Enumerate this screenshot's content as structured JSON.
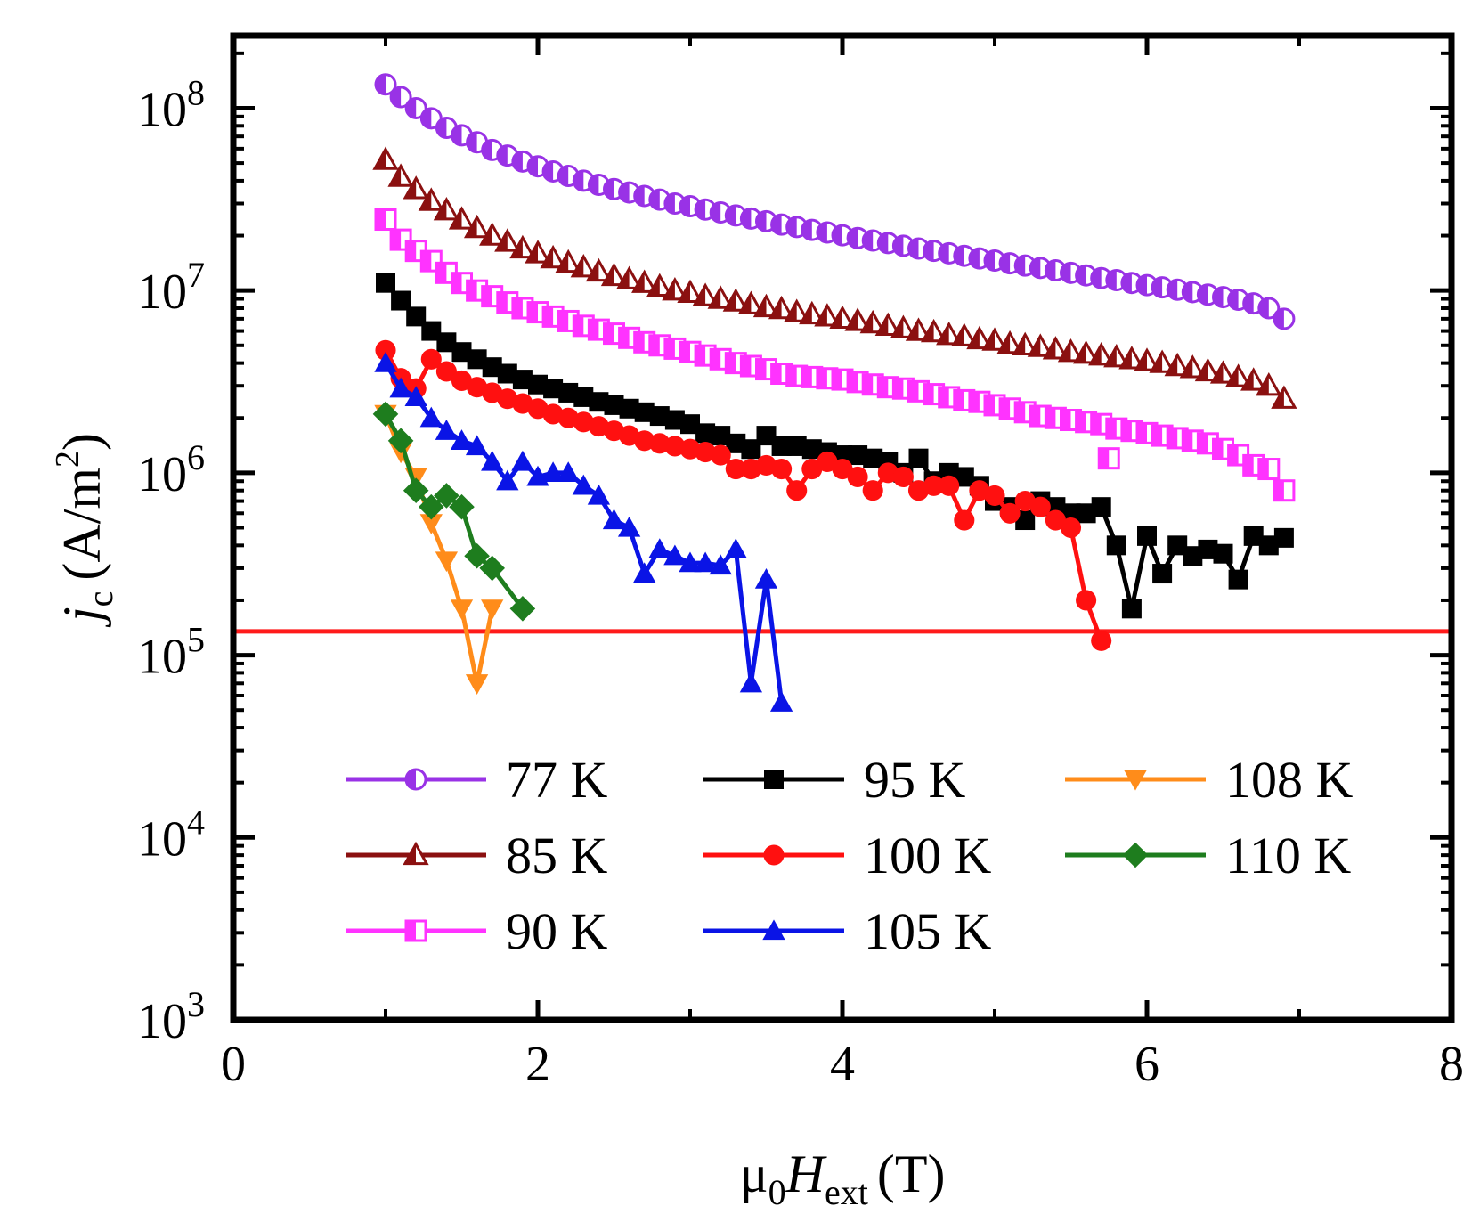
{
  "chart_data": {
    "type": "line",
    "x_axis": {
      "label": "μ0Hext (T)",
      "label_parts": {
        "base": "μ",
        "base_sub": "0",
        "italic": "H",
        "italic_sub": "ext",
        "unit": "(T)"
      },
      "range": [
        0,
        8
      ],
      "ticks": [
        "0",
        "2",
        "4",
        "6",
        "8"
      ],
      "tick_values": [
        0,
        2,
        4,
        6,
        8
      ]
    },
    "y_axis": {
      "label": "jc (A/m2)",
      "label_parts": {
        "italic": "j",
        "italic_sub": "c",
        "unit_open": "(A/m",
        "unit_sup": "2",
        "unit_close": ")"
      },
      "scale": "log",
      "range": [
        1000,
        250000000
      ],
      "ticks": [
        {
          "base": "10",
          "exp": "3",
          "value": 1000
        },
        {
          "base": "10",
          "exp": "4",
          "value": 10000
        },
        {
          "base": "10",
          "exp": "5",
          "value": 100000
        },
        {
          "base": "10",
          "exp": "6",
          "value": 1000000
        },
        {
          "base": "10",
          "exp": "7",
          "value": 10000000
        },
        {
          "base": "10",
          "exp": "8",
          "value": 100000000
        }
      ]
    },
    "reference_line": {
      "y": 135000,
      "color": "#ff1a1a"
    },
    "legend_columns": [
      [
        "77 K",
        "85 K",
        "90 K"
      ],
      [
        "95 K",
        "100 K",
        "105 K"
      ],
      [
        "108 K",
        "110 K"
      ]
    ],
    "series": [
      {
        "name": "77 K",
        "color": "#9932e6",
        "marker": "half-circle",
        "line": false,
        "x": [
          1.0,
          1.1,
          1.2,
          1.3,
          1.4,
          1.5,
          1.6,
          1.7,
          1.8,
          1.9,
          2.0,
          2.1,
          2.2,
          2.3,
          2.4,
          2.5,
          2.6,
          2.7,
          2.8,
          2.9,
          3.0,
          3.1,
          3.2,
          3.3,
          3.4,
          3.5,
          3.6,
          3.7,
          3.8,
          3.9,
          4.0,
          4.1,
          4.2,
          4.3,
          4.4,
          4.5,
          4.6,
          4.7,
          4.8,
          4.9,
          5.0,
          5.1,
          5.2,
          5.3,
          5.4,
          5.5,
          5.6,
          5.7,
          5.8,
          5.9,
          6.0,
          6.1,
          6.2,
          6.3,
          6.4,
          6.5,
          6.6,
          6.7,
          6.8,
          6.9
        ],
        "y": [
          135000000,
          115000000,
          100000000,
          88000000,
          78000000,
          71000000,
          65000000,
          59000000,
          55000000,
          51000000,
          48000000,
          45000000,
          42500000,
          40000000,
          38000000,
          36000000,
          34500000,
          33000000,
          31500000,
          30000000,
          29000000,
          27800000,
          26800000,
          25800000,
          24800000,
          24000000,
          23000000,
          22300000,
          21500000,
          20800000,
          20100000,
          19400000,
          18800000,
          18200000,
          17600000,
          17000000,
          16500000,
          16000000,
          15500000,
          15000000,
          14600000,
          14100000,
          13700000,
          13300000,
          12900000,
          12500000,
          12100000,
          11700000,
          11400000,
          11000000,
          10700000,
          10400000,
          10100000,
          9800000,
          9500000,
          9200000,
          8900000,
          8500000,
          8000000,
          7000000
        ]
      },
      {
        "name": "85 K",
        "color": "#8b1010",
        "marker": "half-triangle",
        "line": false,
        "x": [
          1.0,
          1.1,
          1.2,
          1.3,
          1.4,
          1.5,
          1.6,
          1.7,
          1.8,
          1.9,
          2.0,
          2.1,
          2.2,
          2.3,
          2.4,
          2.5,
          2.6,
          2.7,
          2.8,
          2.9,
          3.0,
          3.1,
          3.2,
          3.3,
          3.4,
          3.5,
          3.6,
          3.7,
          3.8,
          3.9,
          4.0,
          4.1,
          4.2,
          4.3,
          4.4,
          4.5,
          4.6,
          4.7,
          4.8,
          4.9,
          5.0,
          5.1,
          5.2,
          5.3,
          5.4,
          5.5,
          5.6,
          5.7,
          5.8,
          5.9,
          6.0,
          6.1,
          6.2,
          6.3,
          6.4,
          6.5,
          6.6,
          6.7,
          6.8,
          6.9
        ],
        "y": [
          52000000,
          42000000,
          36000000,
          31000000,
          27500000,
          24500000,
          22000000,
          20000000,
          18500000,
          17000000,
          16000000,
          15000000,
          14200000,
          13400000,
          12700000,
          12000000,
          11500000,
          11000000,
          10500000,
          10000000,
          9700000,
          9300000,
          9000000,
          8700000,
          8400000,
          8100000,
          7900000,
          7600000,
          7400000,
          7200000,
          7000000,
          6800000,
          6600000,
          6400000,
          6200000,
          6000000,
          5900000,
          5700000,
          5600000,
          5400000,
          5300000,
          5100000,
          5000000,
          4900000,
          4750000,
          4600000,
          4500000,
          4400000,
          4300000,
          4200000,
          4100000,
          4000000,
          3850000,
          3750000,
          3600000,
          3500000,
          3350000,
          3200000,
          3000000,
          2550000
        ]
      },
      {
        "name": "90 K",
        "color": "#ff33ff",
        "marker": "half-square",
        "line": false,
        "x": [
          1.0,
          1.1,
          1.2,
          1.3,
          1.4,
          1.5,
          1.6,
          1.7,
          1.8,
          1.9,
          2.0,
          2.1,
          2.2,
          2.3,
          2.4,
          2.5,
          2.6,
          2.7,
          2.8,
          2.9,
          3.0,
          3.1,
          3.2,
          3.3,
          3.4,
          3.5,
          3.6,
          3.7,
          3.8,
          3.9,
          4.0,
          4.1,
          4.2,
          4.3,
          4.4,
          4.5,
          4.6,
          4.7,
          4.8,
          4.9,
          5.0,
          5.1,
          5.2,
          5.3,
          5.4,
          5.5,
          5.6,
          5.7,
          5.75,
          5.8,
          5.9,
          6.0,
          6.1,
          6.2,
          6.3,
          6.4,
          6.5,
          6.6,
          6.7,
          6.8,
          6.9
        ],
        "y": [
          24500000,
          19000000,
          16500000,
          14500000,
          12500000,
          11000000,
          10000000,
          9300000,
          8600000,
          8000000,
          7600000,
          7200000,
          6800000,
          6400000,
          6100000,
          5800000,
          5500000,
          5200000,
          5000000,
          4800000,
          4600000,
          4400000,
          4200000,
          4000000,
          3850000,
          3700000,
          3500000,
          3400000,
          3350000,
          3300000,
          3250000,
          3150000,
          3050000,
          2950000,
          2900000,
          2800000,
          2700000,
          2600000,
          2500000,
          2450000,
          2350000,
          2250000,
          2150000,
          2050000,
          2000000,
          1950000,
          1900000,
          1850000,
          1200000,
          1750000,
          1700000,
          1650000,
          1600000,
          1550000,
          1500000,
          1450000,
          1350000,
          1250000,
          1100000,
          1050000,
          800000
        ]
      },
      {
        "name": "95 K",
        "color": "#000000",
        "marker": "square",
        "line": true,
        "x": [
          1.0,
          1.1,
          1.2,
          1.3,
          1.4,
          1.5,
          1.6,
          1.7,
          1.8,
          1.9,
          2.0,
          2.1,
          2.2,
          2.3,
          2.4,
          2.5,
          2.6,
          2.7,
          2.8,
          2.9,
          3.0,
          3.1,
          3.2,
          3.3,
          3.4,
          3.5,
          3.6,
          3.7,
          3.8,
          3.9,
          4.0,
          4.1,
          4.2,
          4.3,
          4.4,
          4.5,
          4.6,
          4.7,
          4.8,
          4.9,
          5.0,
          5.1,
          5.2,
          5.3,
          5.4,
          5.5,
          5.6,
          5.7,
          5.8,
          5.9,
          6.0,
          6.1,
          6.2,
          6.3,
          6.4,
          6.5,
          6.6,
          6.7,
          6.8,
          6.9
        ],
        "y": [
          11000000,
          8800000,
          7200000,
          6000000,
          5200000,
          4600000,
          4200000,
          3800000,
          3500000,
          3250000,
          3050000,
          2900000,
          2750000,
          2600000,
          2450000,
          2350000,
          2250000,
          2150000,
          2050000,
          1950000,
          1850000,
          1650000,
          1600000,
          1450000,
          1350000,
          1600000,
          1400000,
          1400000,
          1350000,
          1300000,
          1250000,
          1250000,
          1200000,
          1150000,
          1000000,
          1200000,
          900000,
          1000000,
          950000,
          850000,
          700000,
          650000,
          550000,
          700000,
          650000,
          600000,
          600000,
          650000,
          400000,
          180000,
          450000,
          280000,
          400000,
          350000,
          380000,
          360000,
          260000,
          450000,
          400000,
          440000
        ]
      },
      {
        "name": "100 K",
        "color": "#ff1010",
        "marker": "circle",
        "line": true,
        "x": [
          1.0,
          1.1,
          1.2,
          1.3,
          1.4,
          1.5,
          1.6,
          1.7,
          1.8,
          1.9,
          2.0,
          2.1,
          2.2,
          2.3,
          2.4,
          2.5,
          2.6,
          2.7,
          2.8,
          2.9,
          3.0,
          3.1,
          3.2,
          3.3,
          3.4,
          3.5,
          3.6,
          3.7,
          3.8,
          3.9,
          4.0,
          4.1,
          4.2,
          4.3,
          4.4,
          4.5,
          4.6,
          4.7,
          4.8,
          4.9,
          5.0,
          5.1,
          5.2,
          5.3,
          5.4,
          5.5,
          5.6,
          5.7
        ],
        "y": [
          4700000,
          3300000,
          2900000,
          4200000,
          3600000,
          3200000,
          2950000,
          2750000,
          2550000,
          2400000,
          2250000,
          2100000,
          2000000,
          1900000,
          1800000,
          1700000,
          1600000,
          1500000,
          1450000,
          1400000,
          1350000,
          1300000,
          1250000,
          1050000,
          1050000,
          1100000,
          1050000,
          800000,
          1050000,
          1150000,
          1050000,
          950000,
          800000,
          1000000,
          950000,
          800000,
          850000,
          850000,
          550000,
          800000,
          750000,
          600000,
          700000,
          650000,
          550000,
          500000,
          200000,
          120000
        ]
      },
      {
        "name": "105 K",
        "color": "#0a14e6",
        "marker": "triangle-up",
        "line": true,
        "x": [
          1.0,
          1.1,
          1.2,
          1.3,
          1.4,
          1.5,
          1.6,
          1.7,
          1.8,
          1.9,
          2.0,
          2.1,
          2.2,
          2.3,
          2.4,
          2.5,
          2.6,
          2.7,
          2.8,
          2.9,
          3.0,
          3.1,
          3.2,
          3.3,
          3.4,
          3.5,
          3.6
        ],
        "y": [
          4000000,
          2900000,
          2600000,
          2000000,
          1700000,
          1500000,
          1400000,
          1150000,
          900000,
          1150000,
          950000,
          1000000,
          1000000,
          850000,
          750000,
          550000,
          500000,
          280000,
          380000,
          350000,
          320000,
          320000,
          310000,
          380000,
          70000,
          260000,
          55000
        ]
      },
      {
        "name": "108 K",
        "color": "#ff8c1a",
        "marker": "triangle-down",
        "line": true,
        "x": [
          1.0,
          1.1,
          1.2,
          1.3,
          1.4,
          1.5,
          1.6,
          1.7
        ],
        "y": [
          2100000,
          1300000,
          950000,
          530000,
          330000,
          180000,
          70000,
          180000
        ]
      },
      {
        "name": "110 K",
        "color": "#1e7d1e",
        "marker": "diamond",
        "line": true,
        "x": [
          1.0,
          1.1,
          1.2,
          1.3,
          1.4,
          1.5,
          1.6,
          1.7,
          1.9
        ],
        "y": [
          2100000,
          1500000,
          800000,
          650000,
          750000,
          650000,
          350000,
          300000,
          180000
        ]
      }
    ]
  }
}
